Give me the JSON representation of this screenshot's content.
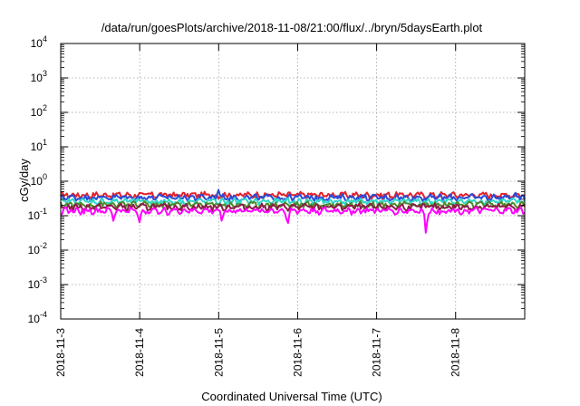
{
  "chart_data": {
    "type": "line",
    "title": "/data/run/goesPlots/archive/2018-11-08/21:00/flux/../bryn/5daysEarth.plot",
    "xlabel": "Coordinated Universal Time (UTC)",
    "ylabel": "cGy/day",
    "x_range": [
      "2018-11-03T00:00Z",
      "2018-11-08T21:00Z"
    ],
    "x_ticks": [
      "2018-11-3",
      "2018-11-4",
      "2018-11-5",
      "2018-11-6",
      "2018-11-7",
      "2018-11-8"
    ],
    "y_scale": "log",
    "ylim": [
      0.0001,
      10000
    ],
    "y_ticks": [
      {
        "base": "10",
        "exp": "-4"
      },
      {
        "base": "10",
        "exp": "-3"
      },
      {
        "base": "10",
        "exp": "-2"
      },
      {
        "base": "10",
        "exp": "-1"
      },
      {
        "base": "10",
        "exp": "0"
      },
      {
        "base": "10",
        "exp": "1"
      },
      {
        "base": "10",
        "exp": "2"
      },
      {
        "base": "10",
        "exp": "3"
      },
      {
        "base": "10",
        "exp": "4"
      }
    ],
    "grid": true,
    "series": [
      {
        "color": "#e5202a",
        "base": 0.4,
        "spikes": []
      },
      {
        "color": "#2a4bd7",
        "base": 0.34,
        "spikes": [
          {
            "x": "2018-11-05T00:00Z",
            "y": 0.6
          },
          {
            "x": "2018-11-08T18:00Z",
            "y": 0.48
          }
        ]
      },
      {
        "color": "#2fd6c8",
        "base": 0.26,
        "spikes": []
      },
      {
        "color": "#4d8a2a",
        "base": 0.21,
        "spikes": []
      },
      {
        "color": "#8b1e45",
        "base": 0.18,
        "spikes": []
      },
      {
        "color": "#ff00ff",
        "base": 0.14,
        "spikes": [
          {
            "x": "2018-11-03T16:00Z",
            "y": 0.07
          },
          {
            "x": "2018-11-04T00:00Z",
            "y": 0.062
          },
          {
            "x": "2018-11-04T18:00Z",
            "y": 0.12
          },
          {
            "x": "2018-11-05T01:00Z",
            "y": 0.066
          },
          {
            "x": "2018-11-05T21:00Z",
            "y": 0.055
          },
          {
            "x": "2018-11-07T15:00Z",
            "y": 0.027
          }
        ]
      }
    ]
  }
}
